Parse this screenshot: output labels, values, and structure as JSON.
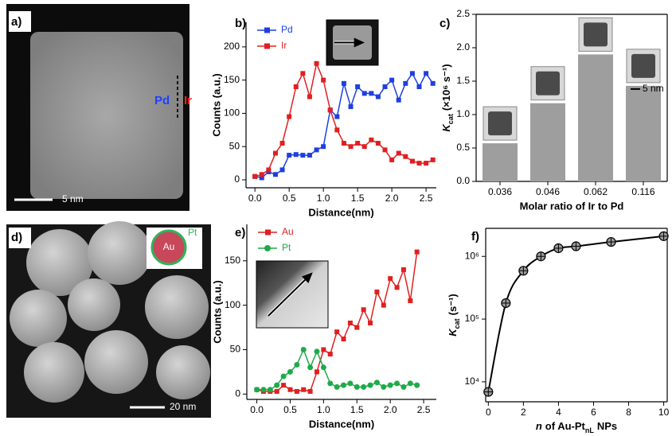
{
  "panels": {
    "a": {
      "label": "a)",
      "left_tag": "Pd",
      "right_tag": "Ir",
      "scale": "5 nm"
    },
    "d": {
      "label": "d)",
      "core": "Au",
      "shell": "Pt",
      "scale": "20 nm"
    }
  },
  "chart_data": [
    {
      "type": "line",
      "panel_label": "b)",
      "x": [
        0,
        0.1,
        0.2,
        0.3,
        0.4,
        0.5,
        0.6,
        0.7,
        0.8,
        0.9,
        1,
        1.1,
        1.2,
        1.3,
        1.4,
        1.5,
        1.6,
        1.7,
        1.8,
        1.9,
        2,
        2.1,
        2.2,
        2.3,
        2.4,
        2.5,
        2.6
      ],
      "series": [
        {
          "name": "Pd",
          "color": "#1f3fe0",
          "marker": "square",
          "values": [
            5,
            3,
            12,
            8,
            15,
            37,
            38,
            37,
            37,
            45,
            50,
            105,
            95,
            145,
            110,
            140,
            130,
            130,
            125,
            140,
            150,
            120,
            145,
            160,
            140,
            160,
            145
          ]
        },
        {
          "name": "Ir",
          "color": "#e02020",
          "marker": "square",
          "values": [
            5,
            8,
            15,
            40,
            55,
            95,
            140,
            160,
            125,
            175,
            150,
            105,
            75,
            55,
            50,
            55,
            50,
            60,
            55,
            45,
            30,
            40,
            35,
            28,
            25,
            25,
            30
          ]
        }
      ],
      "xlim": [
        -0.13,
        2.65
      ],
      "ylim": [
        -12,
        237
      ],
      "xticks": [
        {
          "value": 0,
          "label": "0.0"
        },
        0.5,
        {
          "value": 1,
          "label": "1.0"
        },
        1.5,
        {
          "value": 2,
          "label": "2.0"
        },
        2.5
      ],
      "yticks": [
        0,
        50,
        100,
        150,
        200
      ],
      "x_label": "Distance(nm)",
      "y_label": "Counts (a.u.)",
      "legend": "upper left"
    },
    {
      "type": "bar",
      "panel_label": "c)",
      "categories": [
        "0.036",
        "0.046",
        "0.062",
        "0.116"
      ],
      "values": [
        0.57,
        1.17,
        1.9,
        1.43
      ],
      "color": "#9e9e9e",
      "ylim": [
        0,
        2.5
      ],
      "yticks": [
        {
          "value": 0,
          "label": "0.0"
        },
        0.5,
        {
          "value": 1,
          "label": "1.0"
        },
        1.5,
        {
          "value": 2,
          "label": "2.0"
        },
        2.5
      ],
      "x_label": "Molar ratio of Ir to Pd",
      "y_label": {
        "symbol": "K",
        "subscript": "cat",
        "unit": "(×10⁶ s⁻¹)"
      },
      "inset_scale": "5 nm"
    },
    {
      "type": "line",
      "panel_label": "e)",
      "x": [
        0,
        0.1,
        0.2,
        0.3,
        0.4,
        0.5,
        0.6,
        0.7,
        0.8,
        0.9,
        1,
        1.1,
        1.2,
        1.3,
        1.4,
        1.5,
        1.6,
        1.7,
        1.8,
        1.9,
        2,
        2.1,
        2.2,
        2.3,
        2.4
      ],
      "series": [
        {
          "name": "Au",
          "color": "#e02020",
          "marker": "square",
          "values": [
            5,
            3,
            3,
            3,
            10,
            5,
            3,
            5,
            3,
            25,
            50,
            45,
            70,
            62,
            80,
            75,
            95,
            80,
            115,
            100,
            130,
            120,
            140,
            105,
            160
          ]
        },
        {
          "name": "Pt",
          "color": "#1faa4a",
          "marker": "circle",
          "values": [
            5,
            5,
            5,
            10,
            20,
            25,
            33,
            50,
            30,
            48,
            30,
            12,
            8,
            10,
            12,
            8,
            8,
            10,
            13,
            8,
            10,
            12,
            8,
            12,
            10
          ]
        }
      ],
      "xlim": [
        -0.15,
        2.69
      ],
      "ylim": [
        -6,
        191
      ],
      "xticks": [
        {
          "value": 0,
          "label": "0.0"
        },
        0.5,
        {
          "value": 1,
          "label": "1.0"
        },
        1.5,
        {
          "value": 2,
          "label": "2.0"
        },
        2.5
      ],
      "yticks": [
        0,
        50,
        100,
        150
      ],
      "x_label": "Distance(nm)",
      "y_label": "Counts (a.u.)",
      "legend": "upper left"
    },
    {
      "type": "line",
      "panel_label": "f)",
      "log_y": true,
      "x": [
        0,
        1,
        2,
        3,
        4,
        5,
        7,
        10
      ],
      "series": [
        {
          "color": "#000000",
          "marker": "crossed-circle",
          "values": [
            6900,
            180000,
            590000,
            1000000,
            1350000,
            1450000,
            1700000,
            2100000
          ]
        }
      ],
      "xlim": [
        -0.15,
        10.2
      ],
      "ylim": [
        4800,
        2800000
      ],
      "xticks": [
        0,
        2,
        4,
        6,
        8,
        10
      ],
      "yticks": [
        {
          "value": 10000,
          "label": "10⁴"
        },
        {
          "value": 100000,
          "label": "10⁵"
        },
        {
          "value": 1000000,
          "label": "10⁶"
        }
      ],
      "x_label": {
        "italic": "n",
        "text": "of Au-Pt",
        "subscript": "nL",
        "end": "NPs"
      },
      "y_label": {
        "symbol": "K",
        "subscript": "cat",
        "unit": "(s⁻¹)"
      }
    }
  ]
}
